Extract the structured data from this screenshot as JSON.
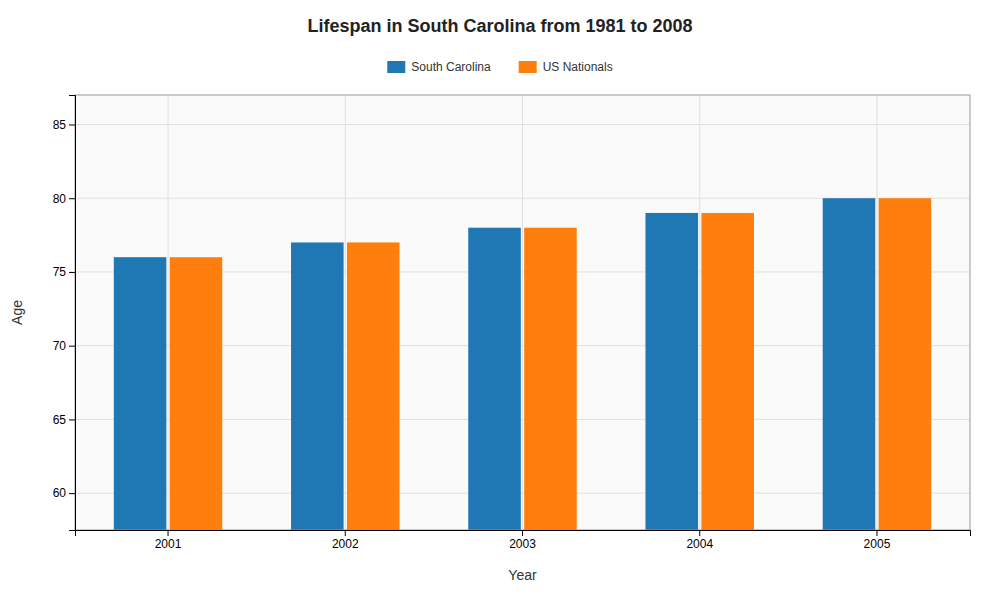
{
  "chart_data": {
    "type": "bar",
    "title": "Lifespan in South Carolina from 1981 to 2008",
    "x_label": "Year",
    "y_label": "Age",
    "categories": [
      "2001",
      "2002",
      "2003",
      "2004",
      "2005"
    ],
    "series": [
      {
        "name": "South Carolina",
        "values": [
          76,
          77,
          78,
          79,
          80
        ]
      },
      {
        "name": "US Nationals",
        "values": [
          76,
          77,
          78,
          79,
          80
        ]
      }
    ],
    "ylim": [
      57.5,
      87
    ],
    "yticks": [
      60,
      65,
      70,
      75,
      80,
      85
    ],
    "grid": true,
    "legend": "top"
  }
}
